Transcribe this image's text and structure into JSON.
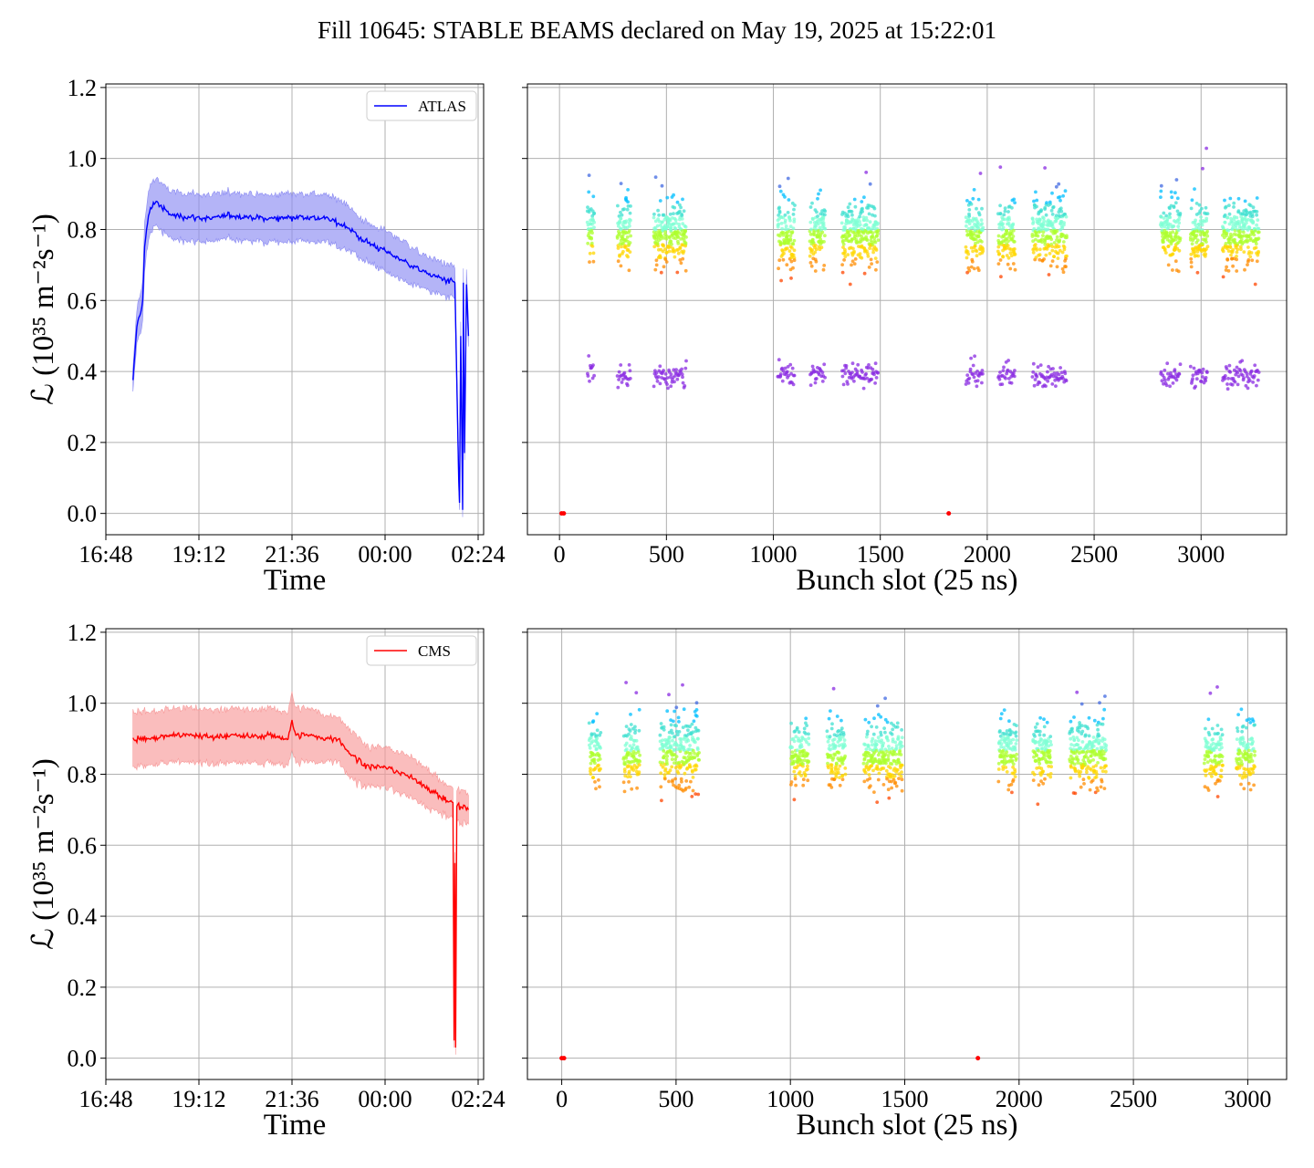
{
  "figure_title": "Fill 10645: STABLE BEAMS declared on May 19, 2025 at 15:22:01",
  "ylabel": "ℒ (10³⁵ m⁻²s⁻¹)",
  "colors": {
    "atlas": "#0000ff",
    "atlas_band": "#8c8cf2",
    "cms": "#ff0000",
    "cms_band": "#f79a9a",
    "grid": "#b0b0b0",
    "scatter_palette": [
      "#8a2be2",
      "#4169e1",
      "#00bfff",
      "#40e0d0",
      "#7fffd4",
      "#adff2f",
      "#ffd700",
      "#ff8c00",
      "#ff4500",
      "#ff0000"
    ]
  },
  "chart_data": [
    {
      "id": "atlas_time",
      "type": "line",
      "xlabel": "Time",
      "ylabel": "ℒ (10³⁵ m⁻²s⁻¹)",
      "legend": "ATLAS",
      "legend_position": "top-right",
      "grid": true,
      "x_ticks": [
        "16:48",
        "19:12",
        "21:36",
        "00:00",
        "02:24"
      ],
      "ylim": [
        -0.06,
        1.21
      ],
      "y_ticks": [
        "0.0",
        "0.2",
        "0.4",
        "0.6",
        "0.8",
        "1.0",
        "1.2"
      ],
      "x_hours": [
        17.5,
        17.6,
        17.7,
        17.75,
        17.8,
        17.9,
        18.0,
        18.1,
        18.25,
        18.5,
        19.0,
        19.5,
        20.0,
        20.5,
        21.0,
        21.5,
        22.0,
        22.5,
        23.0,
        23.3,
        23.6,
        24.0,
        24.5,
        25.0,
        25.5,
        25.8,
        25.9,
        25.92,
        25.95,
        26.0,
        26.02,
        26.05,
        26.1,
        26.15
      ],
      "values": [
        0.37,
        0.53,
        0.57,
        0.6,
        0.75,
        0.84,
        0.87,
        0.88,
        0.86,
        0.84,
        0.835,
        0.83,
        0.84,
        0.835,
        0.83,
        0.835,
        0.835,
        0.83,
        0.81,
        0.78,
        0.76,
        0.74,
        0.71,
        0.68,
        0.66,
        0.65,
        0.1,
        0.03,
        0.5,
        0.01,
        0.65,
        0.17,
        0.65,
        0.5
      ],
      "band_halfwidth": [
        0.03,
        0.04,
        0.05,
        0.05,
        0.06,
        0.06,
        0.06,
        0.06,
        0.06,
        0.06,
        0.06,
        0.06,
        0.06,
        0.06,
        0.06,
        0.06,
        0.06,
        0.06,
        0.06,
        0.05,
        0.05,
        0.05,
        0.05,
        0.04,
        0.04,
        0.04,
        0.02,
        0.02,
        0.04,
        0.02,
        0.04,
        0.02,
        0.04,
        0.03
      ]
    },
    {
      "id": "atlas_bunch",
      "type": "scatter",
      "xlabel": "Bunch slot (25 ns)",
      "grid": true,
      "xlim": [
        -150,
        3400
      ],
      "x_ticks": [
        0,
        500,
        1000,
        1500,
        2000,
        2500,
        3000
      ],
      "ylim": [
        -0.06,
        1.21
      ],
      "trains": [
        [
          130,
          160
        ],
        [
          270,
          330
        ],
        [
          440,
          590
        ],
        [
          1020,
          1100
        ],
        [
          1170,
          1240
        ],
        [
          1320,
          1490
        ],
        [
          1900,
          1980
        ],
        [
          2050,
          2130
        ],
        [
          2210,
          2370
        ],
        [
          2810,
          2900
        ],
        [
          2950,
          3030
        ],
        [
          3100,
          3270
        ]
      ],
      "clusters": [
        {
          "center": 0.39,
          "spread": 0.05,
          "color_index": 0,
          "label": "low cluster"
        },
        {
          "center": 0.79,
          "spread": 0.15,
          "color_index": -1,
          "label": "high cluster"
        }
      ],
      "zero_points": [
        10,
        20,
        1820
      ]
    },
    {
      "id": "cms_time",
      "type": "line",
      "xlabel": "Time",
      "ylabel": "ℒ (10³⁵ m⁻²s⁻¹)",
      "legend": "CMS",
      "legend_position": "top-right",
      "grid": true,
      "x_ticks": [
        "16:48",
        "19:12",
        "21:36",
        "00:00",
        "02:24"
      ],
      "ylim": [
        -0.06,
        1.21
      ],
      "y_ticks": [
        "0.0",
        "0.2",
        "0.4",
        "0.6",
        "0.8",
        "1.0",
        "1.2"
      ],
      "x_hours": [
        17.5,
        18.0,
        18.5,
        19.0,
        19.5,
        20.0,
        20.5,
        21.0,
        21.5,
        21.6,
        21.7,
        22.0,
        22.5,
        22.8,
        23.0,
        23.3,
        23.6,
        24.0,
        24.5,
        25.0,
        25.5,
        25.7,
        25.75,
        25.78,
        25.8,
        25.82,
        25.85,
        26.0,
        26.15
      ],
      "values": [
        0.9,
        0.9,
        0.91,
        0.91,
        0.905,
        0.91,
        0.905,
        0.91,
        0.9,
        0.95,
        0.91,
        0.91,
        0.9,
        0.9,
        0.87,
        0.84,
        0.82,
        0.82,
        0.8,
        0.77,
        0.73,
        0.72,
        0.72,
        0.05,
        0.55,
        0.03,
        0.71,
        0.71,
        0.7
      ],
      "band_halfwidth": [
        0.07,
        0.07,
        0.07,
        0.07,
        0.07,
        0.07,
        0.07,
        0.07,
        0.07,
        0.07,
        0.07,
        0.07,
        0.06,
        0.06,
        0.06,
        0.06,
        0.05,
        0.05,
        0.05,
        0.05,
        0.04,
        0.04,
        0.04,
        0.02,
        0.03,
        0.02,
        0.04,
        0.04,
        0.04
      ]
    },
    {
      "id": "cms_bunch",
      "type": "scatter",
      "xlabel": "Bunch slot (25 ns)",
      "grid": true,
      "xlim": [
        -150,
        3170
      ],
      "x_ticks": [
        0,
        500,
        1000,
        1500,
        2000,
        2500,
        3000
      ],
      "ylim": [
        -0.06,
        1.21
      ],
      "trains": [
        [
          120,
          170
        ],
        [
          270,
          340
        ],
        [
          430,
          600
        ],
        [
          1000,
          1080
        ],
        [
          1160,
          1240
        ],
        [
          1320,
          1490
        ],
        [
          1910,
          1990
        ],
        [
          2060,
          2140
        ],
        [
          2220,
          2380
        ],
        [
          2810,
          2890
        ],
        [
          2950,
          3030
        ]
      ],
      "clusters": [
        {
          "center": 0.86,
          "spread": 0.15,
          "color_index": -1,
          "label": "main cluster"
        }
      ],
      "zero_points": [
        0,
        10,
        1820
      ]
    }
  ]
}
